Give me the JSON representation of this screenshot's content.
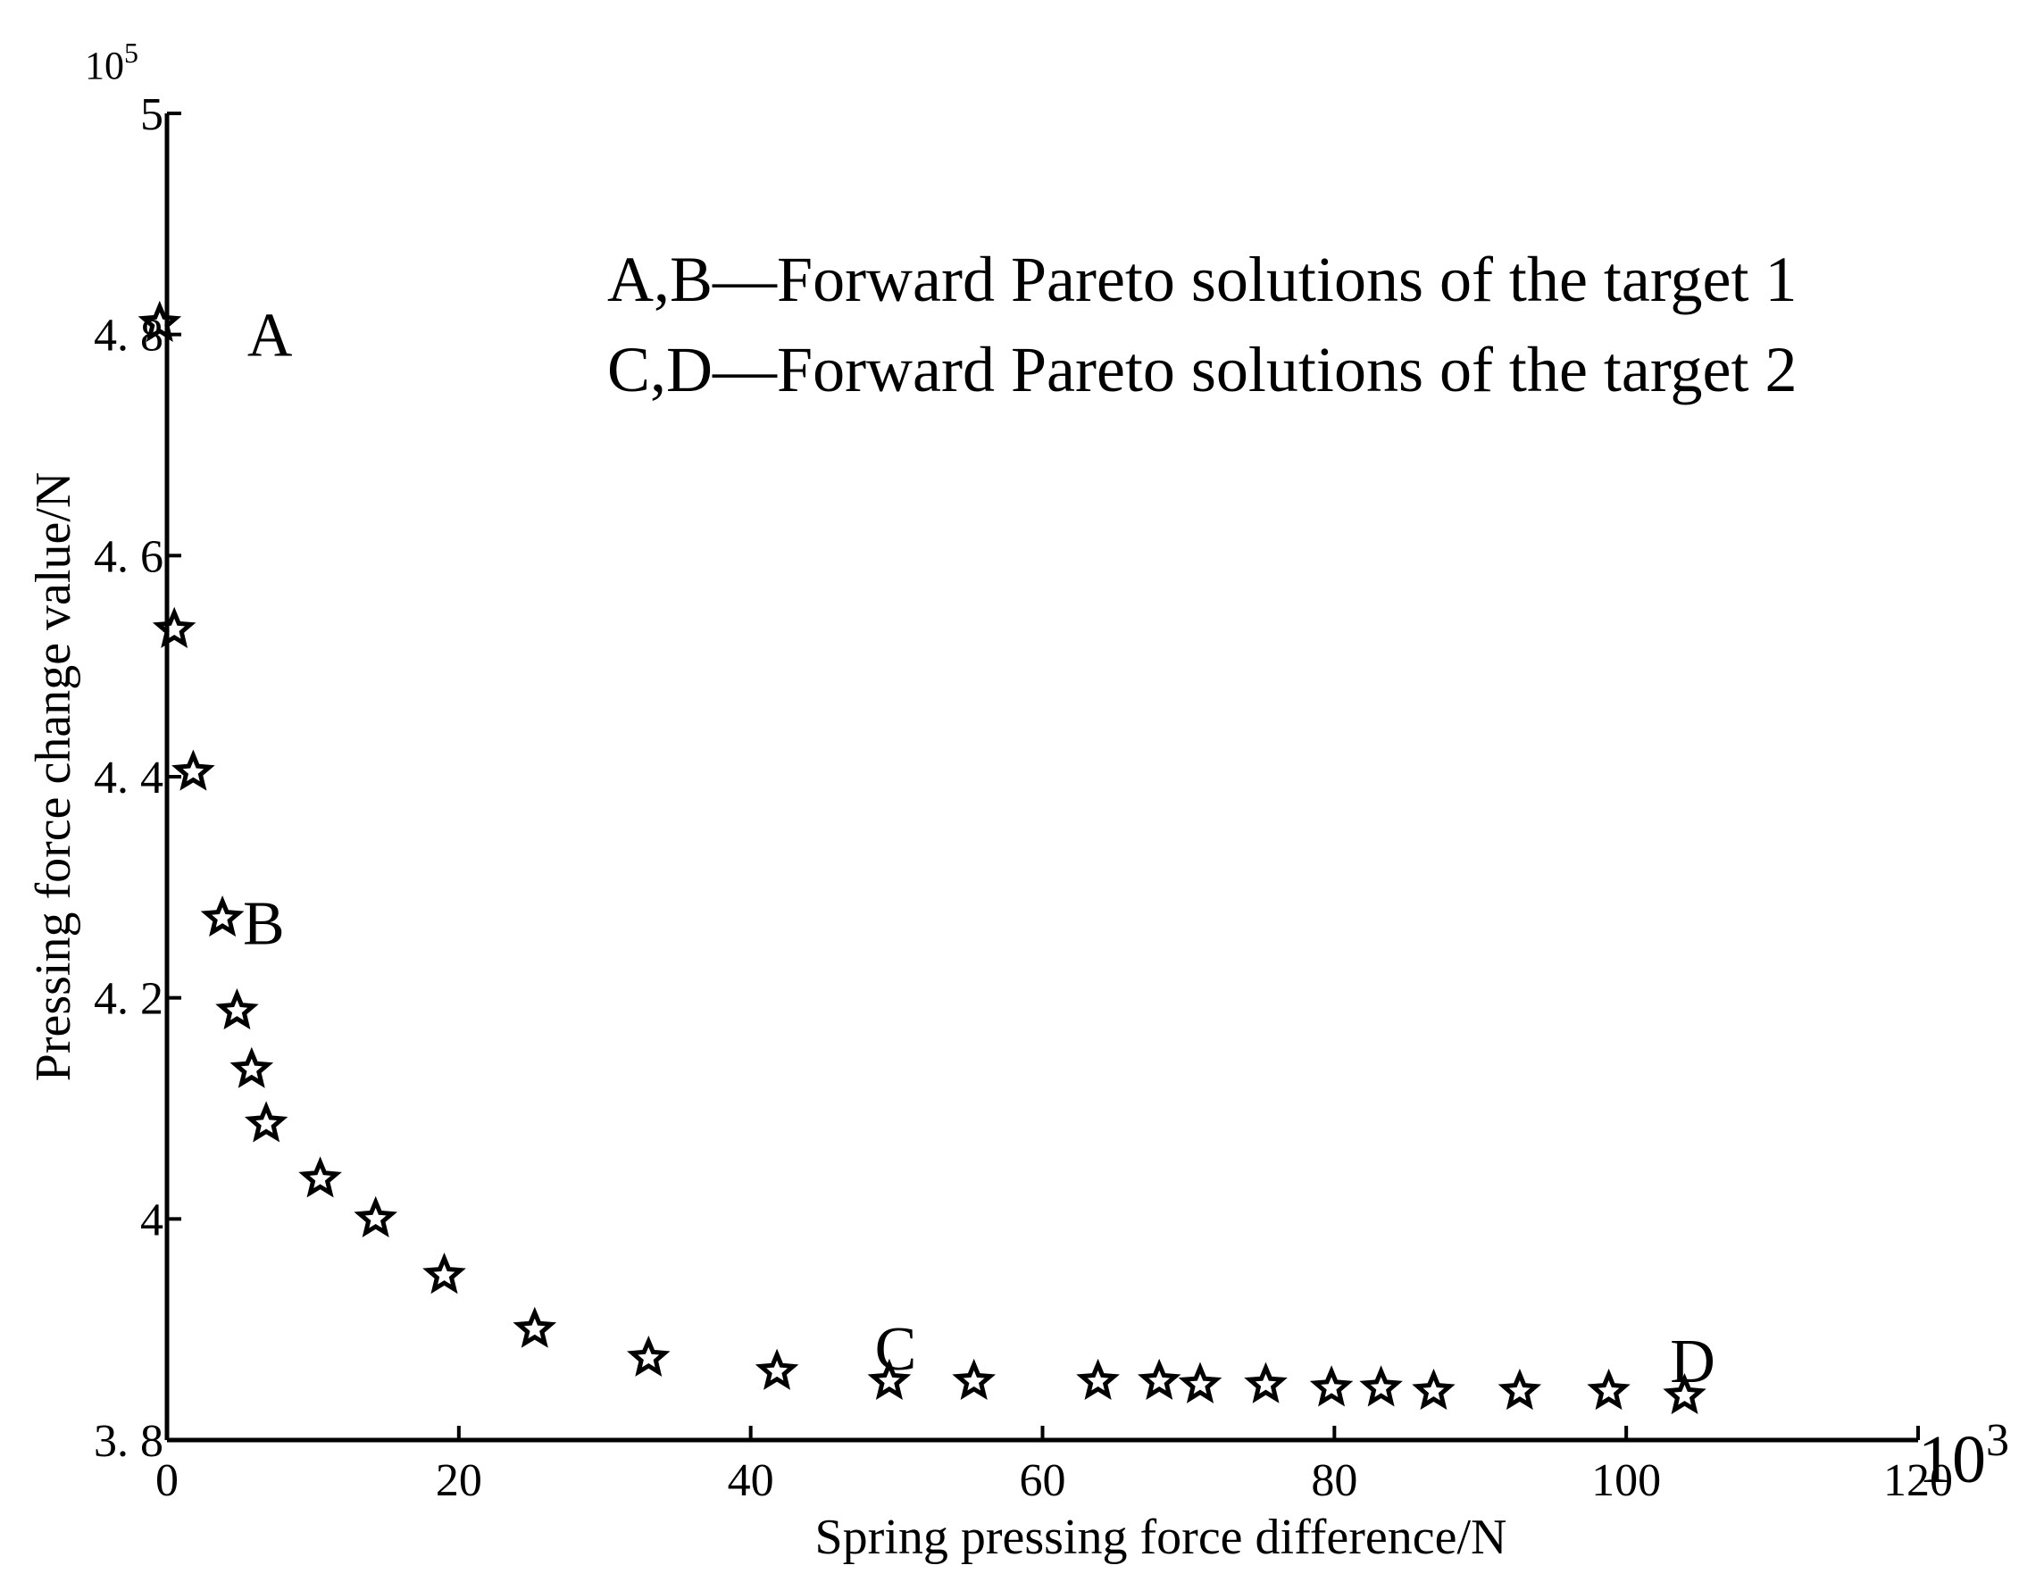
{
  "chart_data": {
    "type": "scatter",
    "title": "",
    "xlabel": "Spring pressing force difference/N",
    "ylabel": "Pressing force change value/N",
    "x_multiplier_label": "10",
    "x_multiplier_exp": "3",
    "y_multiplier_label": "10",
    "y_multiplier_exp": "5",
    "xlim": [
      0,
      120
    ],
    "ylim": [
      3.8,
      5
    ],
    "x_ticks": [
      {
        "value": 0,
        "label": "0"
      },
      {
        "value": 20,
        "label": "20"
      },
      {
        "value": 40,
        "label": "40"
      },
      {
        "value": 60,
        "label": "60"
      },
      {
        "value": 80,
        "label": "80"
      },
      {
        "value": 100,
        "label": "100"
      },
      {
        "value": 120,
        "label": "120"
      }
    ],
    "y_ticks": [
      {
        "value": 3.8,
        "label": "3. 8"
      },
      {
        "value": 4.0,
        "label": "4"
      },
      {
        "value": 4.2,
        "label": "4. 2"
      },
      {
        "value": 4.4,
        "label": "4. 4"
      },
      {
        "value": 4.6,
        "label": "4. 6"
      },
      {
        "value": 4.8,
        "label": "4. 8"
      },
      {
        "value": 5.0,
        "label": "5"
      }
    ],
    "marker": "star",
    "color": "#000000",
    "points": [
      {
        "x": -0.5,
        "y": 4.81
      },
      {
        "x": 0.5,
        "y": 4.533
      },
      {
        "x": 1.8,
        "y": 4.404
      },
      {
        "x": 3.8,
        "y": 4.272
      },
      {
        "x": 4.8,
        "y": 4.188
      },
      {
        "x": 5.8,
        "y": 4.135
      },
      {
        "x": 6.8,
        "y": 4.086
      },
      {
        "x": 10.5,
        "y": 4.036
      },
      {
        "x": 14.3,
        "y": 4.0
      },
      {
        "x": 19.0,
        "y": 3.949
      },
      {
        "x": 25.2,
        "y": 3.9
      },
      {
        "x": 33.0,
        "y": 3.874
      },
      {
        "x": 41.8,
        "y": 3.862
      },
      {
        "x": 49.5,
        "y": 3.853
      },
      {
        "x": 55.3,
        "y": 3.853
      },
      {
        "x": 63.8,
        "y": 3.853
      },
      {
        "x": 68.0,
        "y": 3.853
      },
      {
        "x": 70.8,
        "y": 3.85
      },
      {
        "x": 75.3,
        "y": 3.85
      },
      {
        "x": 79.8,
        "y": 3.847
      },
      {
        "x": 83.2,
        "y": 3.847
      },
      {
        "x": 86.8,
        "y": 3.844
      },
      {
        "x": 92.7,
        "y": 3.844
      },
      {
        "x": 98.8,
        "y": 3.844
      },
      {
        "x": 104.0,
        "y": 3.84
      }
    ],
    "annotations": [
      {
        "text": "A",
        "x": 5.5,
        "y": 4.8
      },
      {
        "text": "B",
        "x": 5.2,
        "y": 4.268
      },
      {
        "text": "C",
        "x": 48.5,
        "y": 3.883
      },
      {
        "text": "D",
        "x": 103.0,
        "y": 3.872
      }
    ],
    "legend": [
      "A,B—Forward Pareto solutions of the target 1",
      "C,D—Forward Pareto solutions of the target 2"
    ],
    "legend_position": "top-right",
    "grid": false
  }
}
